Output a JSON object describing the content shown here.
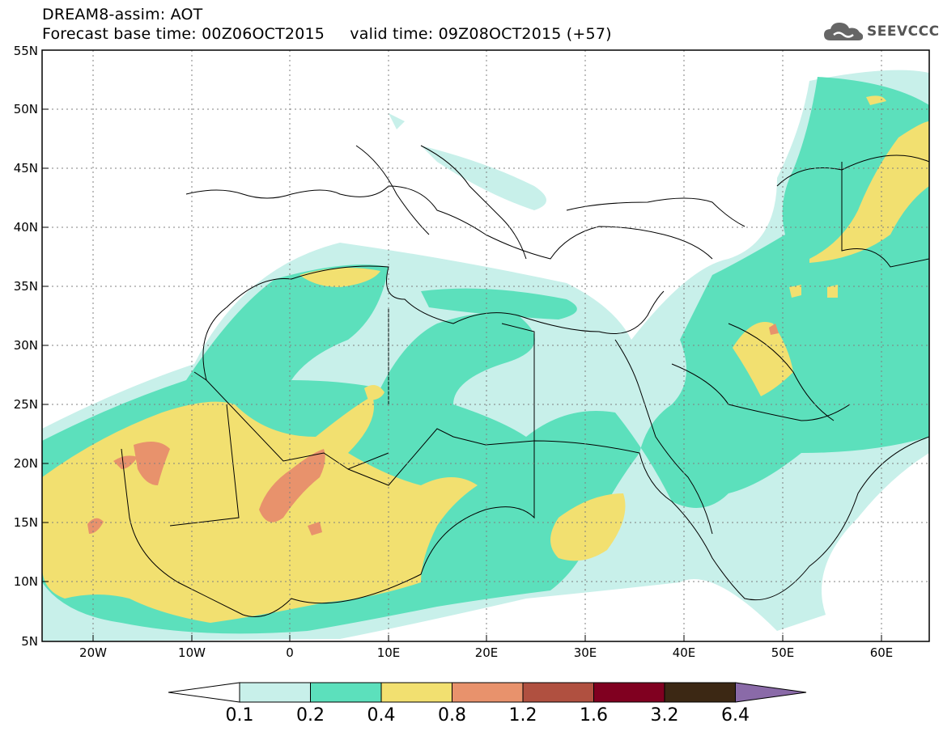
{
  "header": {
    "line1": "DREAM8-assim: AOT",
    "base_label": "Forecast base time: 00Z06OCT2015",
    "valid_label": "valid time: 09Z08OCT2015 (+57)"
  },
  "logo": {
    "text": "SEEVCCC",
    "icon": "cloud-icon"
  },
  "map": {
    "lon_range": [
      -25,
      65
    ],
    "lat_range": [
      5,
      55
    ],
    "lat_ticks": [
      "5N",
      "10N",
      "15N",
      "20N",
      "25N",
      "30N",
      "35N",
      "40N",
      "45N",
      "50N",
      "55N"
    ],
    "lon_ticks": [
      "20W",
      "10W",
      "0",
      "10E",
      "20E",
      "30E",
      "40E",
      "50E",
      "60E"
    ],
    "grid": "dotted"
  },
  "colorbar": {
    "labels": [
      "0.1",
      "0.2",
      "0.4",
      "0.8",
      "1.2",
      "1.6",
      "3.2",
      "6.4"
    ],
    "colors": [
      "#c8f0ea",
      "#5ce0bc",
      "#f2e070",
      "#e8926c",
      "#b05040",
      "#800020",
      "#3c2814",
      "#8a6aa8"
    ]
  },
  "colors": {
    "aot_01": "#c8f0ea",
    "aot_02": "#5ce0bc",
    "aot_04": "#f2e070",
    "aot_08": "#e8926c"
  }
}
